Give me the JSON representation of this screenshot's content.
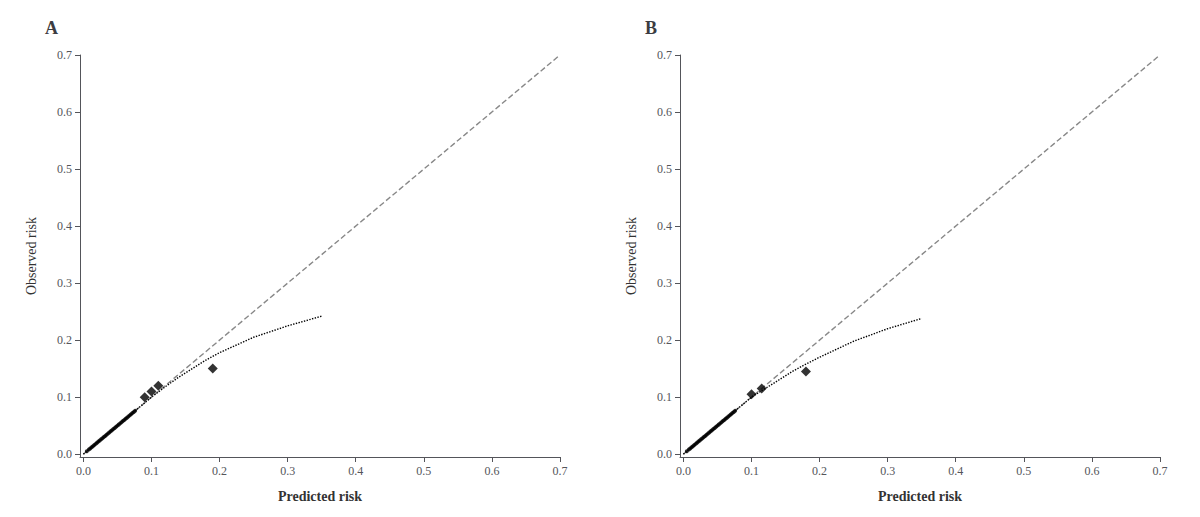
{
  "chart_data": [
    {
      "type": "scatter",
      "title": "A",
      "xlabel": "Predicted risk",
      "ylabel": "Observed risk",
      "xlim": [
        -0.005,
        0.7
      ],
      "ylim": [
        -0.005,
        0.7
      ],
      "xticks": [
        {
          "value": 0.0,
          "label": "0.0"
        },
        0.1,
        0.2,
        0.3,
        0.4,
        0.5,
        0.6,
        0.7
      ],
      "yticks": [
        {
          "value": 0.0,
          "label": "0.0"
        },
        0.1,
        0.2,
        0.3,
        0.4,
        0.5,
        0.6,
        0.7
      ],
      "grid": false,
      "series": [
        {
          "type": "line",
          "line_style": "dashed",
          "color": "#888888",
          "x": [
            0,
            0.7
          ],
          "values": [
            0,
            0.7
          ]
        },
        {
          "type": "line",
          "line_style": "dotted",
          "color": "black",
          "x": [
            0.0,
            0.02,
            0.04,
            0.06,
            0.08,
            0.1,
            0.12,
            0.14,
            0.16,
            0.18,
            0.2,
            0.25,
            0.3,
            0.35
          ],
          "values": [
            0.0,
            0.02,
            0.04,
            0.06,
            0.08,
            0.1,
            0.118,
            0.135,
            0.15,
            0.165,
            0.178,
            0.205,
            0.225,
            0.242
          ]
        },
        {
          "type": "scatter",
          "marker": "dot",
          "color": "black",
          "x": [
            0.005,
            0.008,
            0.01,
            0.012,
            0.014,
            0.016,
            0.018,
            0.02,
            0.022,
            0.024,
            0.026,
            0.028,
            0.03,
            0.032,
            0.034,
            0.036,
            0.038,
            0.04,
            0.042,
            0.044,
            0.046,
            0.048,
            0.05,
            0.052,
            0.054,
            0.056,
            0.058,
            0.06,
            0.062,
            0.064,
            0.066,
            0.068,
            0.07,
            0.072,
            0.074,
            0.076
          ],
          "values": [
            0.005,
            0.008,
            0.01,
            0.012,
            0.014,
            0.016,
            0.018,
            0.02,
            0.022,
            0.024,
            0.026,
            0.028,
            0.03,
            0.032,
            0.034,
            0.036,
            0.038,
            0.04,
            0.042,
            0.044,
            0.046,
            0.048,
            0.05,
            0.052,
            0.054,
            0.056,
            0.058,
            0.06,
            0.062,
            0.064,
            0.066,
            0.068,
            0.07,
            0.072,
            0.074,
            0.076
          ]
        },
        {
          "type": "scatter",
          "marker": "diamond",
          "color": "black",
          "x": [
            0.09,
            0.1,
            0.11,
            0.19
          ],
          "values": [
            0.1,
            0.11,
            0.12,
            0.15
          ]
        }
      ]
    },
    {
      "type": "scatter",
      "title": "B",
      "xlabel": "Predicted risk",
      "ylabel": "Observed risk",
      "xlim": [
        -0.005,
        0.7
      ],
      "ylim": [
        -0.005,
        0.7
      ],
      "xticks": [
        {
          "value": 0.0,
          "label": "0.0"
        },
        0.1,
        0.2,
        0.3,
        0.4,
        0.5,
        0.6,
        0.7
      ],
      "yticks": [
        {
          "value": 0.0,
          "label": "0.0"
        },
        0.1,
        0.2,
        0.3,
        0.4,
        0.5,
        0.6,
        0.7
      ],
      "grid": false,
      "series": [
        {
          "type": "line",
          "line_style": "dashed",
          "color": "#888888",
          "x": [
            0,
            0.7
          ],
          "values": [
            0,
            0.7
          ]
        },
        {
          "type": "line",
          "line_style": "dotted",
          "color": "black",
          "x": [
            0.0,
            0.02,
            0.04,
            0.06,
            0.08,
            0.1,
            0.12,
            0.14,
            0.16,
            0.18,
            0.2,
            0.25,
            0.3,
            0.35
          ],
          "values": [
            0.0,
            0.02,
            0.04,
            0.06,
            0.08,
            0.1,
            0.115,
            0.13,
            0.145,
            0.158,
            0.17,
            0.198,
            0.22,
            0.238
          ]
        },
        {
          "type": "scatter",
          "marker": "dot",
          "color": "black",
          "x": [
            0.005,
            0.008,
            0.01,
            0.012,
            0.014,
            0.016,
            0.018,
            0.02,
            0.022,
            0.024,
            0.026,
            0.028,
            0.03,
            0.032,
            0.034,
            0.036,
            0.038,
            0.04,
            0.042,
            0.044,
            0.046,
            0.048,
            0.05,
            0.052,
            0.054,
            0.056,
            0.058,
            0.06,
            0.062,
            0.064,
            0.066,
            0.068,
            0.07,
            0.072,
            0.074,
            0.076
          ],
          "values": [
            0.005,
            0.008,
            0.01,
            0.012,
            0.014,
            0.016,
            0.018,
            0.02,
            0.022,
            0.024,
            0.026,
            0.028,
            0.03,
            0.032,
            0.034,
            0.036,
            0.038,
            0.04,
            0.042,
            0.044,
            0.046,
            0.048,
            0.05,
            0.052,
            0.054,
            0.056,
            0.058,
            0.06,
            0.062,
            0.064,
            0.066,
            0.068,
            0.07,
            0.072,
            0.074,
            0.076
          ]
        },
        {
          "type": "scatter",
          "marker": "diamond",
          "color": "black",
          "x": [
            0.1,
            0.115,
            0.18
          ],
          "values": [
            0.105,
            0.115,
            0.145
          ]
        }
      ]
    }
  ]
}
